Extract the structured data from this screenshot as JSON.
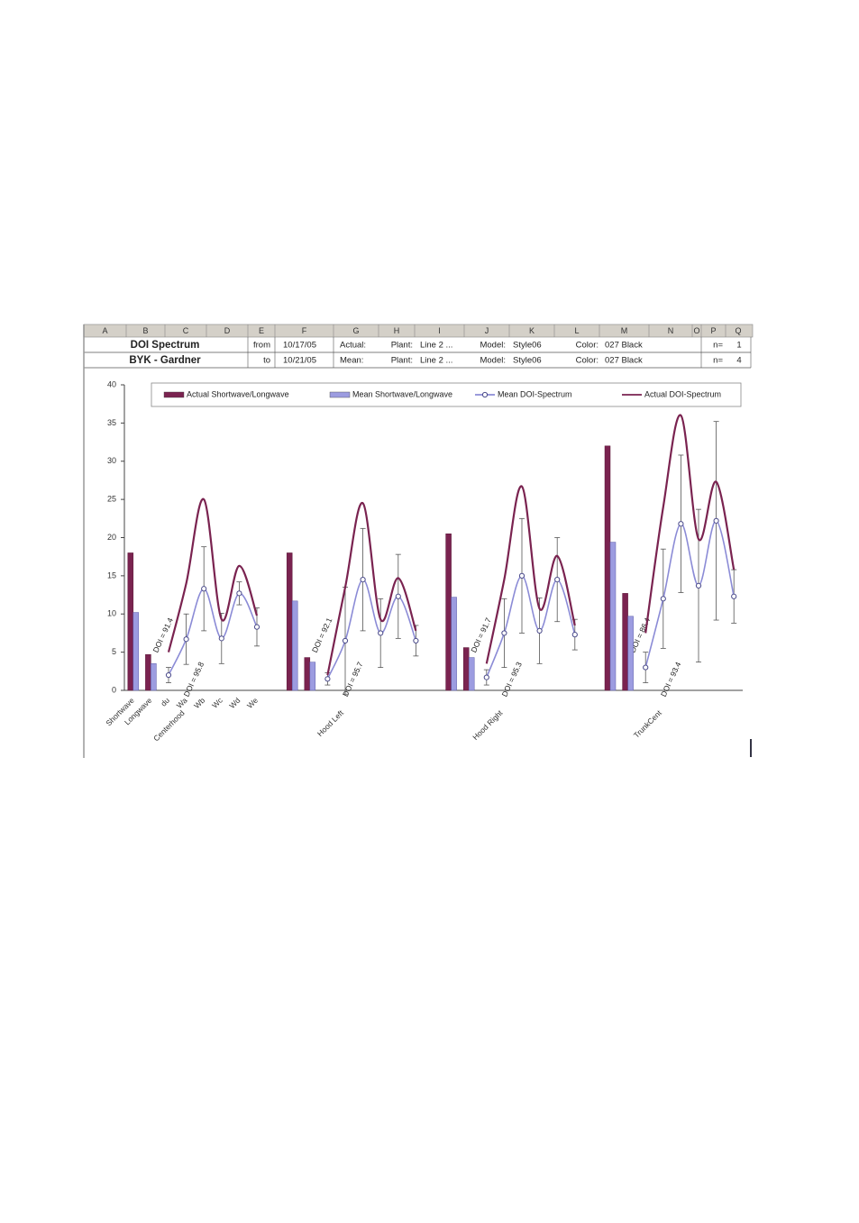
{
  "sheet": {
    "columns": [
      "A",
      "B",
      "C",
      "D",
      "E",
      "F",
      "G",
      "H",
      "I",
      "J",
      "K",
      "L",
      "M",
      "N",
      "O",
      "P",
      "Q"
    ],
    "rows": [
      [
        "DOI Spectrum",
        "from",
        "10/17/05",
        "Actual:",
        "Plant:",
        "Line 2 ...",
        "Model:",
        "Style06",
        "Color:",
        "027 Black",
        "n=",
        "1"
      ],
      [
        "BYK - Gardner",
        "to",
        "10/21/05",
        "Mean:",
        "Plant:",
        "Line 2 ...",
        "Model:",
        "Style06",
        "Color:",
        "027 Black",
        "n=",
        "4"
      ]
    ]
  },
  "chart_data": {
    "type": "combo",
    "categories": [
      "Shortwave",
      "Longwave",
      "du",
      "Wa",
      "Wb",
      "Wc",
      "Wd",
      "We",
      null,
      null,
      null,
      null,
      null,
      null,
      null,
      null,
      null,
      null,
      null,
      null,
      null,
      null,
      null,
      null,
      null,
      null,
      null,
      null,
      null,
      null,
      null,
      null,
      null,
      null,
      null
    ],
    "groups": [
      {
        "name": "Centerhood",
        "actual_doi": "DOI = 91.4",
        "mean_doi": "DOI = 95.8"
      },
      {
        "name": "Hood Left",
        "actual_doi": "DOI = 92.1",
        "mean_doi": "DOI = 95.7"
      },
      {
        "name": "Hood Right",
        "actual_doi": "DOI = 91.7",
        "mean_doi": "DOI = 95.3"
      },
      {
        "name": "TrunkCent",
        "actual_doi": "DOI = 86.4",
        "mean_doi": "DOI = 93.4"
      }
    ],
    "series": [
      {
        "name": "Actual Shortwave/Longwave",
        "type": "bar",
        "color": "#7a2350",
        "values": [
          18,
          4.7,
          null,
          null,
          null,
          null,
          null,
          null,
          null,
          18,
          4.3,
          null,
          null,
          null,
          null,
          null,
          null,
          null,
          20.5,
          5.6,
          null,
          null,
          null,
          null,
          null,
          null,
          null,
          32,
          12.7,
          null,
          null,
          null,
          null,
          null,
          null
        ]
      },
      {
        "name": "Mean Shortwave/Longwave",
        "type": "bar",
        "color": "#9c9ce0",
        "values": [
          10.2,
          3.5,
          null,
          null,
          null,
          null,
          null,
          null,
          null,
          11.7,
          3.7,
          null,
          null,
          null,
          null,
          null,
          null,
          null,
          12.2,
          4.3,
          null,
          null,
          null,
          null,
          null,
          null,
          null,
          19.4,
          9.7,
          null,
          null,
          null,
          null,
          null,
          null
        ]
      },
      {
        "name": "Mean DOI-Spectrum",
        "type": "line",
        "color": "#8b8bd6",
        "markers": true,
        "smooth": true,
        "values": [
          null,
          null,
          2,
          6.7,
          13.3,
          6.8,
          12.7,
          8.3,
          null,
          null,
          null,
          1.5,
          6.5,
          14.5,
          7.5,
          12.3,
          6.5,
          null,
          null,
          null,
          1.7,
          7.5,
          15,
          7.8,
          14.5,
          7.3,
          null,
          null,
          null,
          3,
          12,
          21.8,
          13.7,
          22.2,
          12.3
        ],
        "errors": [
          null,
          null,
          1,
          3.3,
          5.5,
          3.3,
          1.5,
          2.5,
          null,
          null,
          null,
          0.8,
          7,
          6.7,
          4.5,
          5.5,
          2,
          null,
          null,
          null,
          1,
          4.5,
          7.5,
          4.3,
          5.5,
          2,
          null,
          null,
          null,
          2,
          6.5,
          9,
          10,
          13,
          3.5
        ]
      },
      {
        "name": "Actual DOI-Spectrum",
        "type": "line",
        "color": "#7a2350",
        "markers": false,
        "smooth": true,
        "values": [
          null,
          null,
          5,
          14,
          25,
          9.3,
          16.3,
          9.8,
          null,
          null,
          null,
          2,
          13.5,
          24.5,
          9.3,
          14.7,
          7.8,
          null,
          null,
          null,
          3.5,
          14.5,
          26.7,
          10.7,
          17.6,
          8.5,
          null,
          null,
          null,
          7.5,
          24,
          36,
          19.8,
          27.3,
          15.8
        ]
      }
    ],
    "ylim": [
      0,
      40
    ],
    "yticks": [
      0,
      5,
      10,
      15,
      20,
      25,
      30,
      35,
      40
    ],
    "grid": false
  }
}
